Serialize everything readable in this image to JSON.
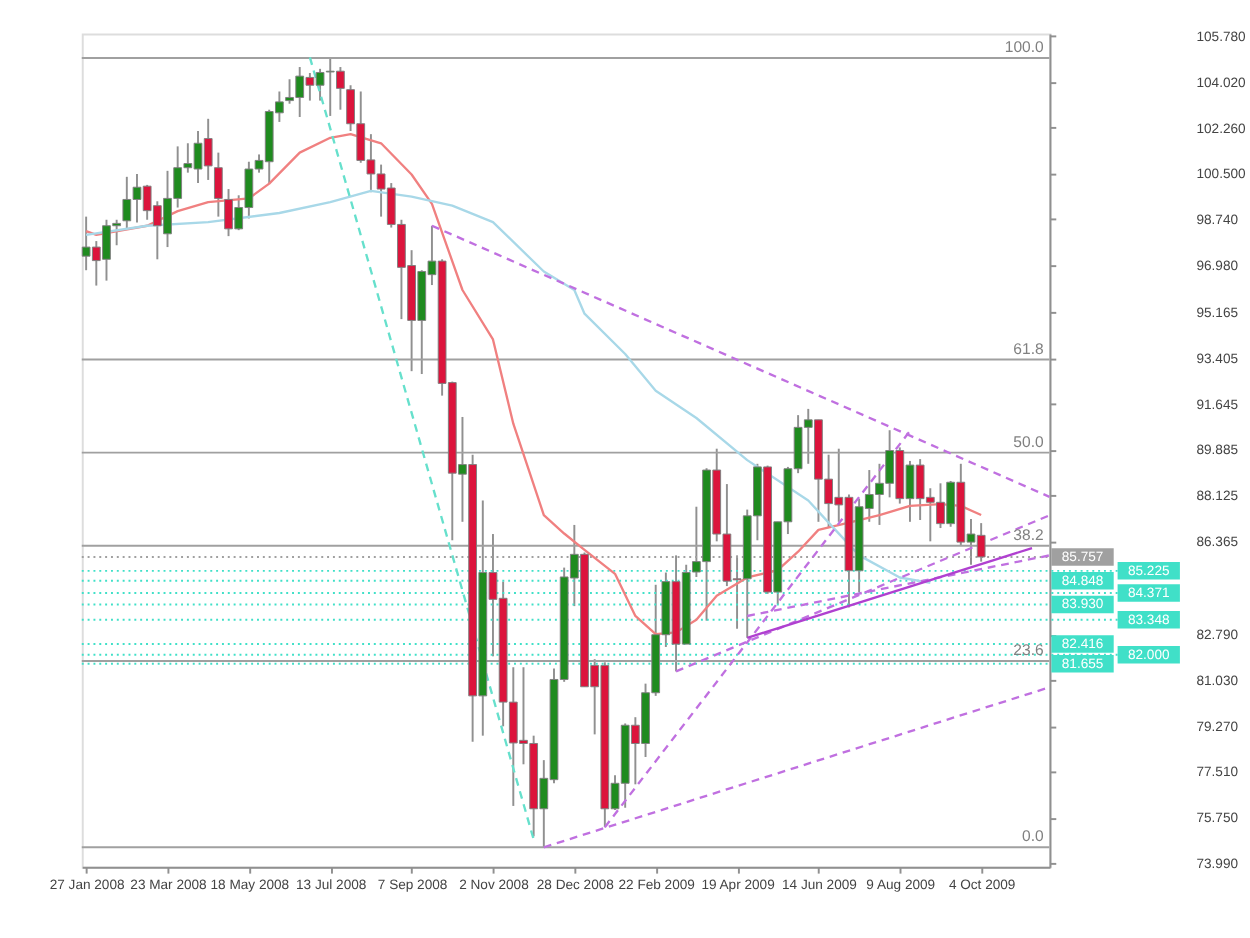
{
  "chart_data": {
    "type": "candlestick",
    "x": [
      "2008-01-27",
      "2008-02-03",
      "2008-02-10",
      "2008-02-17",
      "2008-02-24",
      "2008-03-02",
      "2008-03-09",
      "2008-03-16",
      "2008-03-23",
      "2008-03-30",
      "2008-04-06",
      "2008-04-13",
      "2008-04-20",
      "2008-04-27",
      "2008-05-04",
      "2008-05-11",
      "2008-05-18",
      "2008-05-25",
      "2008-06-01",
      "2008-06-08",
      "2008-06-15",
      "2008-06-22",
      "2008-06-29",
      "2008-07-06",
      "2008-07-13",
      "2008-07-20",
      "2008-07-27",
      "2008-08-03",
      "2008-08-10",
      "2008-08-17",
      "2008-08-24",
      "2008-08-31",
      "2008-09-07",
      "2008-09-14",
      "2008-09-21",
      "2008-09-28",
      "2008-10-05",
      "2008-10-12",
      "2008-10-19",
      "2008-10-26",
      "2008-11-02",
      "2008-11-09",
      "2008-11-16",
      "2008-11-23",
      "2008-11-30",
      "2008-12-07",
      "2008-12-14",
      "2008-12-21",
      "2008-12-28",
      "2009-01-04",
      "2009-01-11",
      "2009-01-18",
      "2009-01-25",
      "2009-02-01",
      "2009-02-08",
      "2009-02-15",
      "2009-02-22",
      "2009-03-01",
      "2009-03-08",
      "2009-03-15",
      "2009-03-22",
      "2009-03-29",
      "2009-04-05",
      "2009-04-12",
      "2009-04-19",
      "2009-04-26",
      "2009-05-03",
      "2009-05-10",
      "2009-05-17",
      "2009-05-24",
      "2009-05-31",
      "2009-06-07",
      "2009-06-14",
      "2009-06-21",
      "2009-06-28",
      "2009-07-05",
      "2009-07-12",
      "2009-07-19",
      "2009-07-26",
      "2009-08-02",
      "2009-08-09",
      "2009-08-16",
      "2009-08-23",
      "2009-08-30",
      "2009-09-06",
      "2009-09-13",
      "2009-09-20",
      "2009-09-27",
      "2009-10-04"
    ],
    "ohlc": [
      [
        97.32,
        98.84,
        96.78,
        97.67
      ],
      [
        97.67,
        97.9,
        96.19,
        97.15
      ],
      [
        97.2,
        98.72,
        96.38,
        98.49
      ],
      [
        98.49,
        98.72,
        97.74,
        98.58
      ],
      [
        98.68,
        100.37,
        98.37,
        99.5
      ],
      [
        99.5,
        100.48,
        98.61,
        99.97
      ],
      [
        100.01,
        100.06,
        98.72,
        99.07
      ],
      [
        99.26,
        99.43,
        97.2,
        98.49
      ],
      [
        98.18,
        100.6,
        97.67,
        99.54
      ],
      [
        99.54,
        101.54,
        99.19,
        100.72
      ],
      [
        100.72,
        101.66,
        100.53,
        100.88
      ],
      [
        100.67,
        102.13,
        100.13,
        101.66
      ],
      [
        101.84,
        102.6,
        100.25,
        100.79
      ],
      [
        100.72,
        101.3,
        98.84,
        99.54
      ],
      [
        99.5,
        99.9,
        98.09,
        98.37
      ],
      [
        98.37,
        99.66,
        98.32,
        99.19
      ],
      [
        99.19,
        100.95,
        98.77,
        100.67
      ],
      [
        100.67,
        101.23,
        100.53,
        101.0
      ],
      [
        100.95,
        102.95,
        100.13,
        102.88
      ],
      [
        102.83,
        103.65,
        102.48,
        103.25
      ],
      [
        103.3,
        104.12,
        103.18,
        103.42
      ],
      [
        103.42,
        104.59,
        102.67,
        104.24
      ],
      [
        104.19,
        104.36,
        103.3,
        103.89
      ],
      [
        103.89,
        104.52,
        103.3,
        104.38
      ],
      [
        104.4,
        104.94,
        102.71,
        104.43
      ],
      [
        104.43,
        104.59,
        102.95,
        103.77
      ],
      [
        103.72,
        103.89,
        102.13,
        102.41
      ],
      [
        102.41,
        103.65,
        100.91,
        101.0
      ],
      [
        101.02,
        102.01,
        99.78,
        100.48
      ],
      [
        100.48,
        100.84,
        98.84,
        99.9
      ],
      [
        99.94,
        100.13,
        98.42,
        98.54
      ],
      [
        98.54,
        98.72,
        94.9,
        96.89
      ],
      [
        96.96,
        97.55,
        92.9,
        94.85
      ],
      [
        94.85,
        96.78,
        92.79,
        96.73
      ],
      [
        96.61,
        98.49,
        96.21,
        97.13
      ],
      [
        97.13,
        97.2,
        91.96,
        92.43
      ],
      [
        92.46,
        92.5,
        86.4,
        88.98
      ],
      [
        88.94,
        91.14,
        87.11,
        89.31
      ],
      [
        89.31,
        89.69,
        78.66,
        80.42
      ],
      [
        80.42,
        87.93,
        78.89,
        85.16
      ],
      [
        85.16,
        86.64,
        81.94,
        84.13
      ],
      [
        84.17,
        84.81,
        79.25,
        80.18
      ],
      [
        80.18,
        81.52,
        76.19,
        78.61
      ],
      [
        78.71,
        81.52,
        77.79,
        78.59
      ],
      [
        78.59,
        78.89,
        75.02,
        76.08
      ],
      [
        76.08,
        77.95,
        74.6,
        77.25
      ],
      [
        77.2,
        81.47,
        77.06,
        81.05
      ],
      [
        81.05,
        85.35,
        80.96,
        84.99
      ],
      [
        84.95,
        86.99,
        83.87,
        85.86
      ],
      [
        85.86,
        85.93,
        80.77,
        80.77
      ],
      [
        81.59,
        81.83,
        78.94,
        80.77
      ],
      [
        81.59,
        81.71,
        75.37,
        76.08
      ],
      [
        76.08,
        77.37,
        76.03,
        77.06
      ],
      [
        77.06,
        79.36,
        76.12,
        79.29
      ],
      [
        79.29,
        79.6,
        77.02,
        78.59
      ],
      [
        78.59,
        80.89,
        78.07,
        80.54
      ],
      [
        80.54,
        84.69,
        80.42,
        82.77
      ],
      [
        82.77,
        85.16,
        82.3,
        84.81
      ],
      [
        84.81,
        85.82,
        81.36,
        82.41
      ],
      [
        82.41,
        85.46,
        82.41,
        85.16
      ],
      [
        85.18,
        87.69,
        84.99,
        85.58
      ],
      [
        85.58,
        89.17,
        83.31,
        89.1
      ],
      [
        89.1,
        89.92,
        86.36,
        86.64
      ],
      [
        86.64,
        88.56,
        84.64,
        84.83
      ],
      [
        84.92,
        85.82,
        83.0,
        84.88
      ],
      [
        84.92,
        87.58,
        82.65,
        87.34
      ],
      [
        87.34,
        89.34,
        86.4,
        89.22
      ],
      [
        89.22,
        89.27,
        84.34,
        84.41
      ],
      [
        84.41,
        87.11,
        83.94,
        87.11
      ],
      [
        87.11,
        89.22,
        86.64,
        89.15
      ],
      [
        89.15,
        91.21,
        88.98,
        90.74
      ],
      [
        90.74,
        91.45,
        89.34,
        91.03
      ],
      [
        91.03,
        91.03,
        87.11,
        88.75
      ],
      [
        88.75,
        89.69,
        86.87,
        87.81
      ],
      [
        88.05,
        89.92,
        87.11,
        87.76
      ],
      [
        88.05,
        88.16,
        83.82,
        85.23
      ],
      [
        85.23,
        88.0,
        84.41,
        87.69
      ],
      [
        87.62,
        89.1,
        87.11,
        88.16
      ],
      [
        88.16,
        89.34,
        86.99,
        88.59
      ],
      [
        88.59,
        90.63,
        88.05,
        89.85
      ],
      [
        89.85,
        89.97,
        87.81,
        88.0
      ],
      [
        88.0,
        89.45,
        87.11,
        89.29
      ],
      [
        89.29,
        89.52,
        87.18,
        88.0
      ],
      [
        88.05,
        88.4,
        86.36,
        87.86
      ],
      [
        87.86,
        88.59,
        86.87,
        87.04
      ],
      [
        87.04,
        88.68,
        86.92,
        88.63
      ],
      [
        88.63,
        89.34,
        86.22,
        86.33
      ],
      [
        86.33,
        87.22,
        85.46,
        86.64
      ],
      [
        86.59,
        87.06,
        85.58,
        85.76
      ]
    ],
    "colors": [
      "#1f8b1f",
      "#dc143c",
      "#1f8b1f",
      "#1f8b1f",
      "#1f8b1f",
      "#1f8b1f",
      "#dc143c",
      "#dc143c",
      "#1f8b1f",
      "#1f8b1f",
      "#1f8b1f",
      "#1f8b1f",
      "#dc143c",
      "#dc143c",
      "#dc143c",
      "#1f8b1f",
      "#1f8b1f",
      "#1f8b1f",
      "#1f8b1f",
      "#1f8b1f",
      "#1f8b1f",
      "#1f8b1f",
      "#dc143c",
      "#1f8b1f",
      "#1f8b1f",
      "#dc143c",
      "#dc143c",
      "#dc143c",
      "#dc143c",
      "#dc143c",
      "#dc143c",
      "#dc143c",
      "#dc143c",
      "#1f8b1f",
      "#1f8b1f",
      "#dc143c",
      "#dc143c",
      "#1f8b1f",
      "#dc143c",
      "#1f8b1f",
      "#dc143c",
      "#dc143c",
      "#dc143c",
      "#dc143c",
      "#dc143c",
      "#1f8b1f",
      "#1f8b1f",
      "#1f8b1f",
      "#1f8b1f",
      "#dc143c",
      "#dc143c",
      "#dc143c",
      "#1f8b1f",
      "#1f8b1f",
      "#dc143c",
      "#1f8b1f",
      "#1f8b1f",
      "#1f8b1f",
      "#dc143c",
      "#1f8b1f",
      "#1f8b1f",
      "#1f8b1f",
      "#dc143c",
      "#dc143c",
      "#dc143c",
      "#1f8b1f",
      "#1f8b1f",
      "#dc143c",
      "#1f8b1f",
      "#1f8b1f",
      "#1f8b1f",
      "#1f8b1f",
      "#dc143c",
      "#dc143c",
      "#dc143c",
      "#dc143c",
      "#1f8b1f",
      "#1f8b1f",
      "#1f8b1f",
      "#1f8b1f",
      "#dc143c",
      "#1f8b1f",
      "#dc143c",
      "#dc143c",
      "#dc143c",
      "#1f8b1f",
      "#dc143c",
      "#1f8b1f",
      "#dc143c"
    ],
    "series": [
      {
        "type": "line",
        "color": "#f08080",
        "line_style": "solid",
        "x": [
          "2008-01-27",
          "2008-02-03",
          "2008-03-09",
          "2008-03-30",
          "2008-04-20",
          "2008-05-18",
          "2008-06-01",
          "2008-06-22",
          "2008-07-13",
          "2008-07-27",
          "2008-08-17",
          "2008-09-07",
          "2008-09-21",
          "2008-10-12",
          "2008-11-02",
          "2008-11-16",
          "2008-12-07",
          "2008-12-21",
          "2009-01-04",
          "2009-01-25",
          "2009-02-08",
          "2009-02-22",
          "2009-03-08",
          "2009-03-22",
          "2009-04-05",
          "2009-04-26",
          "2009-05-17",
          "2009-05-31",
          "2009-06-14",
          "2009-07-05",
          "2009-07-26",
          "2009-08-16",
          "2009-09-06",
          "2009-09-20",
          "2009-10-04"
        ],
        "values": [
          98.28,
          98.14,
          98.49,
          99.05,
          99.4,
          99.54,
          100.11,
          101.3,
          101.87,
          102.01,
          101.66,
          100.46,
          99.33,
          96.02,
          94.12,
          90.88,
          87.37,
          86.66,
          86.03,
          85.11,
          83.49,
          82.79,
          82.86,
          83.35,
          84.27,
          84.97,
          85.25,
          85.96,
          86.8,
          87.08,
          87.37,
          87.72,
          87.79,
          87.72,
          87.37
        ]
      },
      {
        "type": "line",
        "color": "#a8d8e8",
        "line_style": "solid",
        "x": [
          "2008-01-27",
          "2008-03-09",
          "2008-04-20",
          "2008-06-08",
          "2008-07-13",
          "2008-08-10",
          "2008-09-07",
          "2008-10-05",
          "2008-11-02",
          "2008-12-07",
          "2008-12-28",
          "2009-01-04",
          "2009-02-01",
          "2009-02-22",
          "2009-03-22",
          "2009-04-26",
          "2009-06-07",
          "2009-06-21",
          "2009-07-12",
          "2009-08-09",
          "2009-08-30"
        ],
        "values": [
          98.14,
          98.49,
          98.63,
          98.98,
          99.4,
          99.83,
          99.61,
          99.26,
          98.63,
          96.73,
          96.02,
          95.11,
          93.56,
          92.15,
          91.1,
          89.48,
          87.93,
          87.08,
          85.82,
          84.97,
          84.76
        ]
      },
      {
        "type": "line",
        "color": "#66e0cc",
        "line_style": "dashed",
        "x": [
          "2008-06-29",
          "2008-11-30"
        ],
        "values": [
          104.96,
          74.9
        ]
      },
      {
        "type": "line",
        "color": "#c070e0",
        "line_style": "dashed",
        "x": [
          "2008-09-21",
          "2009-11-20"
        ],
        "values": [
          98.49,
          88.07
        ]
      },
      {
        "type": "line",
        "color": "#c070e0",
        "line_style": "dashed",
        "x": [
          "2008-12-07",
          "2009-11-20"
        ],
        "values": [
          74.6,
          80.75
        ]
      },
      {
        "type": "line",
        "color": "#c070e0",
        "line_style": "dashed",
        "x": [
          "2009-01-18",
          "2009-08-16"
        ],
        "values": [
          75.37,
          90.6
        ]
      },
      {
        "type": "line",
        "color": "#c070e0",
        "line_style": "dashed",
        "x": [
          "2009-03-08",
          "2009-11-20"
        ],
        "values": [
          81.36,
          87.36
        ]
      },
      {
        "type": "line",
        "color": "#c070e0",
        "line_style": "dashed",
        "x": [
          "2009-04-26",
          "2009-11-20"
        ],
        "values": [
          83.49,
          85.82
        ]
      },
      {
        "type": "line",
        "color": "#b040d0",
        "line_style": "solid",
        "x": [
          "2009-04-26",
          "2009-11-08"
        ],
        "values": [
          82.65,
          86.1
        ]
      }
    ],
    "ref_lines": [
      {
        "axis": "y",
        "value": 104.94,
        "color": "#a0a0a0"
      },
      {
        "axis": "y",
        "value": 93.35,
        "color": "#a0a0a0"
      },
      {
        "axis": "y",
        "value": 89.77,
        "color": "#a0a0a0"
      },
      {
        "axis": "y",
        "value": 86.19,
        "color": "#a0a0a0"
      },
      {
        "axis": "y",
        "value": 81.76,
        "color": "#a0a0a0"
      },
      {
        "axis": "y",
        "value": 74.6,
        "color": "#a0a0a0"
      },
      {
        "axis": "y",
        "value": 85.757,
        "label": "85.757",
        "color": "#a0a0a0",
        "line_style": "dotted"
      },
      {
        "axis": "y",
        "value": 85.225,
        "label": "85.225",
        "color": "#40e0c8",
        "line_style": "dotted"
      },
      {
        "axis": "y",
        "value": 84.848,
        "label": "84.848",
        "color": "#40e0c8",
        "line_style": "dotted"
      },
      {
        "axis": "y",
        "value": 84.371,
        "label": "84.371",
        "color": "#40e0c8",
        "line_style": "dotted"
      },
      {
        "axis": "y",
        "value": 83.93,
        "label": "83.930",
        "color": "#40e0c8",
        "line_style": "dotted"
      },
      {
        "axis": "y",
        "value": 83.348,
        "label": "83.348",
        "color": "#40e0c8",
        "line_style": "dotted"
      },
      {
        "axis": "y",
        "value": 82.416,
        "label": "82.416",
        "color": "#40e0c8",
        "line_style": "dotted"
      },
      {
        "axis": "y",
        "value": 82.0,
        "label": "82.000",
        "color": "#40e0c8",
        "line_style": "dotted"
      },
      {
        "axis": "y",
        "value": 81.655,
        "label": "81.655",
        "color": "#40e0c8",
        "line_style": "dotted"
      }
    ],
    "annotations": [
      {
        "text": "100.0",
        "x": "2009-11-20",
        "y": 104.94
      },
      {
        "text": "61.8",
        "x": "2009-11-20",
        "y": 93.35
      },
      {
        "text": "50.0",
        "x": "2009-11-20",
        "y": 89.77
      },
      {
        "text": "38.2",
        "x": "2009-11-20",
        "y": 86.19
      },
      {
        "text": "23.6",
        "x": "2009-11-20",
        "y": 81.76
      },
      {
        "text": "0.0",
        "x": "2009-11-20",
        "y": 74.6
      }
    ],
    "xlim": [
      "2008-01-24",
      "2009-11-20"
    ],
    "xticks": [
      {
        "value": "2008-01-27",
        "label": "27 Jan 2008"
      },
      {
        "value": "2008-03-23",
        "label": "23 Mar 2008"
      },
      {
        "value": "2008-05-18",
        "label": "18 May 2008"
      },
      {
        "value": "2008-07-13",
        "label": "13 Jul 2008"
      },
      {
        "value": "2008-09-07",
        "label": "7 Sep 2008"
      },
      {
        "value": "2008-11-02",
        "label": "2 Nov 2008"
      },
      {
        "value": "2008-12-28",
        "label": "28 Dec 2008"
      },
      {
        "value": "2009-02-22",
        "label": "22 Feb 2009"
      },
      {
        "value": "2009-04-19",
        "label": "19 Apr 2009"
      },
      {
        "value": "2009-06-14",
        "label": "14 Jun 2009"
      },
      {
        "value": "2009-08-09",
        "label": "9 Aug 2009"
      },
      {
        "value": "2009-10-04",
        "label": "4 Oct 2009"
      }
    ],
    "ylim": [
      73.85,
      105.88
    ],
    "yticks": [
      {
        "value": 105.78,
        "label": "105.780"
      },
      {
        "value": 104.02,
        "label": "104.020"
      },
      {
        "value": 102.26,
        "label": "102.260"
      },
      {
        "value": 100.5,
        "label": "100.500"
      },
      {
        "value": 98.74,
        "label": "98.740"
      },
      {
        "value": 96.98,
        "label": "96.980"
      },
      95.165,
      93.405,
      91.645,
      89.885,
      88.125,
      86.365,
      {
        "value": 82.79,
        "label": "82.790"
      },
      {
        "value": 81.03,
        "label": "81.030"
      },
      {
        "value": 79.27,
        "label": "79.270"
      },
      {
        "value": 77.51,
        "label": "77.510"
      },
      {
        "value": 75.75,
        "label": "75.750"
      },
      {
        "value": 73.99,
        "label": "73.990"
      }
    ]
  }
}
